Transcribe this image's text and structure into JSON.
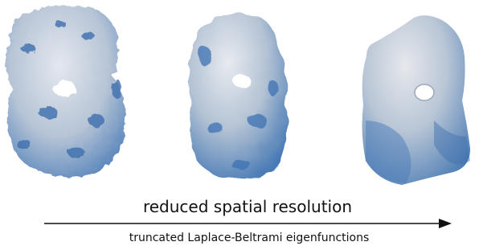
{
  "caption": {
    "top": "reduced spatial resolution",
    "bottom": "truncated Laplace-Beltrami eigenfunctions"
  }
}
